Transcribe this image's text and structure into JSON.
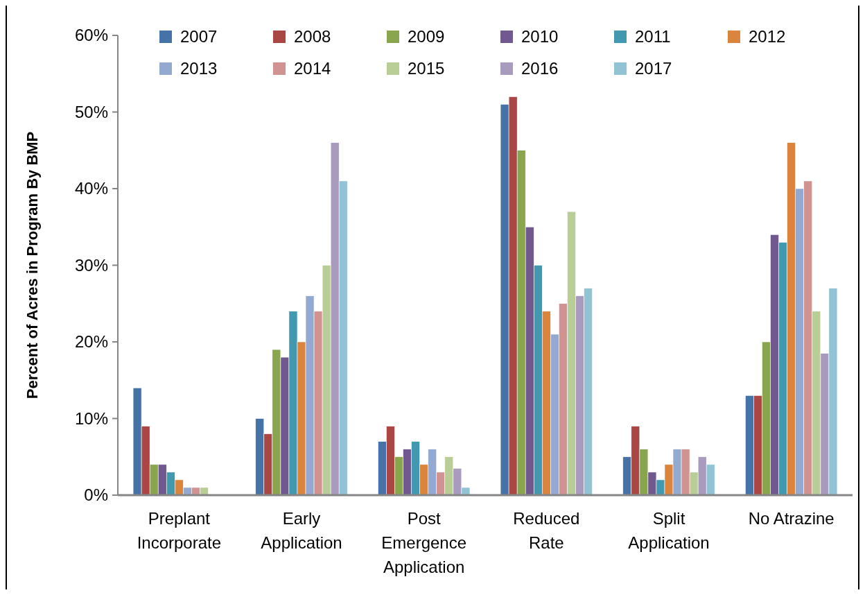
{
  "chart_data": {
    "type": "bar",
    "ylabel": "Percent of Acres in Program By BMP",
    "categories": [
      "Preplant Incorporate",
      "Early Application",
      "Post Emergence Application",
      "Reduced Rate",
      "Split Application",
      "No Atrazine"
    ],
    "series": [
      {
        "name": "2007",
        "color": "#4572a7",
        "values": [
          14,
          10,
          7,
          51,
          5,
          13
        ]
      },
      {
        "name": "2008",
        "color": "#aa4643",
        "values": [
          9,
          8,
          9,
          52,
          9,
          13
        ]
      },
      {
        "name": "2009",
        "color": "#89a54e",
        "values": [
          4,
          19,
          5,
          45,
          6,
          20
        ]
      },
      {
        "name": "2010",
        "color": "#71588f",
        "values": [
          4,
          18,
          6,
          35,
          3,
          34
        ]
      },
      {
        "name": "2011",
        "color": "#4198af",
        "values": [
          3,
          24,
          7,
          30,
          2,
          33
        ]
      },
      {
        "name": "2012",
        "color": "#db843d",
        "values": [
          2,
          20,
          4,
          24,
          4,
          46
        ]
      },
      {
        "name": "2013",
        "color": "#93a9cf",
        "values": [
          1,
          26,
          6,
          21,
          6,
          40
        ]
      },
      {
        "name": "2014",
        "color": "#d19392",
        "values": [
          1,
          24,
          3,
          25,
          6,
          41
        ]
      },
      {
        "name": "2015",
        "color": "#b9cd96",
        "values": [
          1,
          30,
          5,
          37,
          3,
          24
        ]
      },
      {
        "name": "2016",
        "color": "#a99bbd",
        "values": [
          0,
          46,
          3.5,
          26,
          5,
          18.5
        ]
      },
      {
        "name": "2017",
        "color": "#92c3d5",
        "values": [
          0,
          41,
          1,
          27,
          4,
          27
        ]
      }
    ],
    "ylim": [
      0,
      60
    ],
    "yticks": [
      {
        "value": 0,
        "label": "0%"
      },
      {
        "value": 10,
        "label": "10%"
      },
      {
        "value": 20,
        "label": "20%"
      },
      {
        "value": 30,
        "label": "30%"
      },
      {
        "value": 40,
        "label": "40%"
      },
      {
        "value": 50,
        "label": "50%"
      },
      {
        "value": 60,
        "label": "60%"
      }
    ],
    "grid": false,
    "legend": "top"
  }
}
